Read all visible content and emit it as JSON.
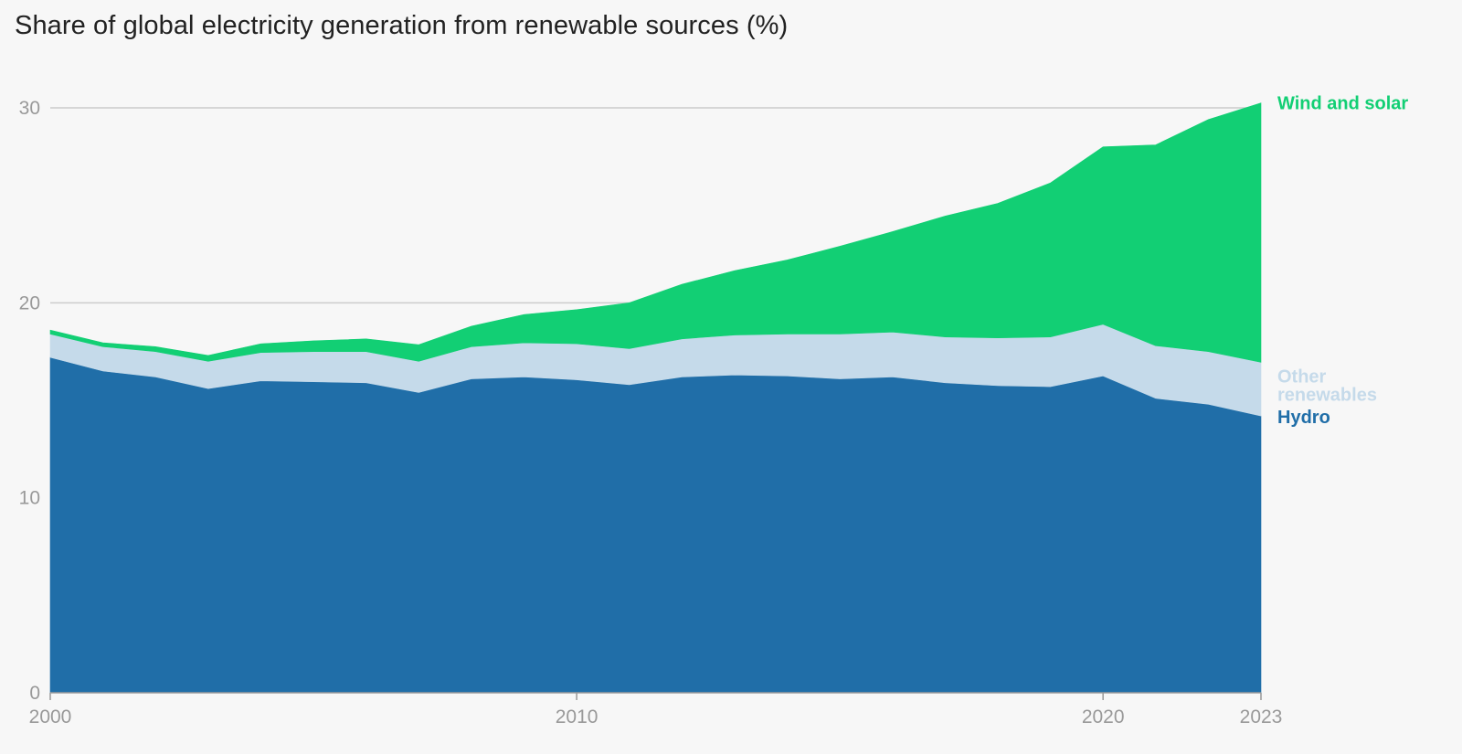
{
  "title": "Share of global electricity generation from renewable sources (%)",
  "chart_data": {
    "type": "area",
    "stacked": true,
    "title": "Share of global electricity generation from renewable sources (%)",
    "xlabel": "",
    "ylabel": "",
    "x": [
      2000,
      2001,
      2002,
      2003,
      2004,
      2005,
      2006,
      2007,
      2008,
      2009,
      2010,
      2011,
      2012,
      2013,
      2014,
      2015,
      2016,
      2017,
      2018,
      2019,
      2020,
      2021,
      2022,
      2023
    ],
    "xlim": [
      2000,
      2023
    ],
    "ylim": [
      0,
      30
    ],
    "x_ticks": [
      "2000",
      "2010",
      "2020",
      "2023"
    ],
    "y_ticks": [
      "0",
      "10",
      "20",
      "30"
    ],
    "grid": true,
    "legend": "inline labels at right end of areas",
    "series": [
      {
        "name": "Hydro",
        "color": "#206ea8",
        "values": [
          17.2,
          16.5,
          16.2,
          15.6,
          16.0,
          15.95,
          15.9,
          15.4,
          16.1,
          16.2,
          16.05,
          15.8,
          16.2,
          16.3,
          16.25,
          16.1,
          16.2,
          15.9,
          15.75,
          15.7,
          16.25,
          15.1,
          14.8,
          14.2
        ],
        "label_lines": [
          "Hydro"
        ]
      },
      {
        "name": "Other renewables",
        "color": "#c5daea",
        "values": [
          1.2,
          1.25,
          1.3,
          1.4,
          1.45,
          1.55,
          1.6,
          1.6,
          1.65,
          1.75,
          1.85,
          1.85,
          1.95,
          2.05,
          2.15,
          2.3,
          2.3,
          2.35,
          2.45,
          2.55,
          2.65,
          2.7,
          2.7,
          2.75
        ],
        "label_lines": [
          "Other",
          "renewables"
        ]
      },
      {
        "name": "Wind and solar",
        "color": "#12cf74",
        "values": [
          0.2,
          0.2,
          0.25,
          0.3,
          0.45,
          0.55,
          0.65,
          0.85,
          1.05,
          1.45,
          1.75,
          2.35,
          2.8,
          3.3,
          3.8,
          4.5,
          5.15,
          6.2,
          6.9,
          7.9,
          9.1,
          10.3,
          11.9,
          13.3
        ],
        "label_lines": [
          "Wind and solar"
        ]
      }
    ]
  }
}
